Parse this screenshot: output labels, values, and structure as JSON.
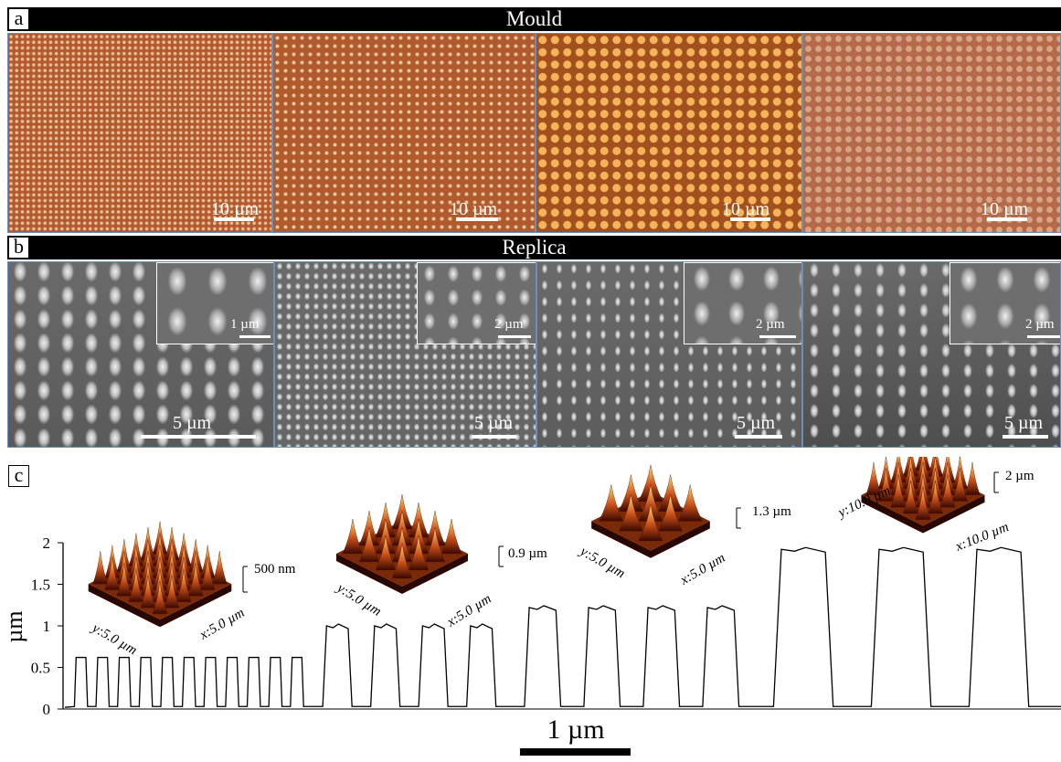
{
  "panel_a": {
    "letter": "a",
    "title": "Mould",
    "images": [
      {
        "scale_bar": "10 µm",
        "base": "#b4582e",
        "dot": "#e6c398"
      },
      {
        "scale_bar": "10 µm",
        "base": "#b05a2e",
        "dot": "#ecc89e"
      },
      {
        "scale_bar": "10 µm",
        "base": "#a3501f",
        "dot": "#f5b45a"
      },
      {
        "scale_bar": "10 µm",
        "base": "#b56a4a",
        "dot": "#d7a585"
      }
    ]
  },
  "panel_b": {
    "letter": "b",
    "title": "Replica",
    "images": [
      {
        "scale_bar": "5 µm",
        "inset_scale_bar": "1 µm"
      },
      {
        "scale_bar": "5 µm",
        "inset_scale_bar": "2 µm"
      },
      {
        "scale_bar": "5 µm",
        "inset_scale_bar": "2 µm"
      },
      {
        "scale_bar": "5 µm",
        "inset_scale_bar": "2 µm"
      }
    ]
  },
  "panel_c": {
    "letter": "c",
    "afm_insets": [
      {
        "z_label": "500 nm",
        "x_label": "x:5.0 µm",
        "y_label": "y:5.0 µm"
      },
      {
        "z_label": "0.9 µm",
        "x_label": "x:5.0 µm",
        "y_label": "y:5.0 µm"
      },
      {
        "z_label": "1.3 µm",
        "x_label": "x:5.0 µm",
        "y_label": "y:5.0 µm"
      },
      {
        "z_label": "2 µm",
        "x_label": "x:10.0 µm",
        "y_label": "y:10.0 µm"
      }
    ],
    "scale_bar": "1 µm"
  },
  "chart_data": {
    "type": "line",
    "title": "",
    "xlabel": "",
    "ylabel": "µm",
    "ylim": [
      0,
      2
    ],
    "yticks": [
      "0",
      "0.5",
      "1",
      "1.5",
      "2"
    ],
    "series": [
      {
        "segments": [
          {
            "count": 11,
            "height": 0.62,
            "plateau": "flat"
          },
          {
            "count": 4,
            "height": 1.0,
            "plateau": "dip"
          },
          {
            "count": 4,
            "height": 1.22,
            "plateau": "dip"
          },
          {
            "count": 3,
            "height": 1.92,
            "plateau": "dip"
          }
        ]
      }
    ],
    "grid": false,
    "legend": "none"
  },
  "colors": {
    "mould_border": "#6c8fb8",
    "band": "#000000",
    "afm_low": "#3a0800",
    "afm_mid": "#c8501a",
    "afm_high": "#fff0c0"
  }
}
